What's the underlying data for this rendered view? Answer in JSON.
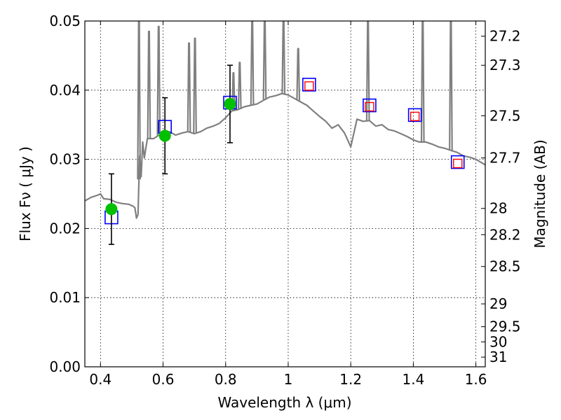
{
  "chart_data": {
    "type": "scatter",
    "xlabel": "Wavelength  λ (μm)",
    "ylabel": "Flux  Fν  ( μJy )",
    "ylabel_right": "Magnitude (AB)",
    "xlim": [
      0.35,
      1.63
    ],
    "ylim": [
      0.0,
      0.05
    ],
    "grid": true,
    "x_ticks": [
      0.4,
      0.6,
      0.8,
      1.0,
      1.2,
      1.4,
      1.6
    ],
    "x_tick_labels": [
      "0.4",
      "0.6",
      "0.8",
      "1",
      "1.2",
      "1.4",
      "1.6"
    ],
    "y_ticks": [
      0.0,
      0.01,
      0.02,
      0.03,
      0.04,
      0.05
    ],
    "y_tick_labels": [
      "0.00",
      "0.01",
      "0.02",
      "0.03",
      "0.04",
      "0.05"
    ],
    "right_axis_ticks": [
      {
        "flux": 0.0478,
        "label": "27.2"
      },
      {
        "flux": 0.0436,
        "label": "27.3"
      },
      {
        "flux": 0.0363,
        "label": "27.5"
      },
      {
        "flux": 0.0302,
        "label": "27.7"
      },
      {
        "flux": 0.0229,
        "label": "28"
      },
      {
        "flux": 0.0191,
        "label": "28.2"
      },
      {
        "flux": 0.0145,
        "label": "28.5"
      },
      {
        "flux": 0.0091,
        "label": "29"
      },
      {
        "flux": 0.0058,
        "label": "29.5"
      },
      {
        "flux": 0.0036,
        "label": "30"
      },
      {
        "flux": 0.0014,
        "label": "31"
      }
    ],
    "series": [
      {
        "kind": "line",
        "color": "#808080",
        "x": [
          0.35,
          0.37,
          0.39,
          0.4,
          0.41,
          0.43,
          0.45,
          0.47,
          0.49,
          0.505,
          0.51,
          0.515,
          0.52,
          0.525,
          0.53,
          0.535,
          0.54,
          0.55,
          0.56,
          0.57,
          0.58,
          0.59,
          0.6,
          0.62,
          0.64,
          0.66,
          0.68,
          0.7,
          0.72,
          0.74,
          0.76,
          0.78,
          0.8,
          0.82,
          0.84,
          0.86,
          0.88,
          0.9,
          0.92,
          0.94,
          0.96,
          0.98,
          1.0,
          1.02,
          1.04,
          1.06,
          1.08,
          1.1,
          1.12,
          1.14,
          1.16,
          1.18,
          1.2,
          1.22,
          1.24,
          1.26,
          1.28,
          1.3,
          1.32,
          1.34,
          1.36,
          1.38,
          1.4,
          1.42,
          1.44,
          1.46,
          1.48,
          1.5,
          1.52,
          1.54,
          1.56,
          1.58,
          1.6,
          1.63
        ],
        "y": [
          0.024,
          0.0245,
          0.0248,
          0.025,
          0.0243,
          0.0242,
          0.0238,
          0.0236,
          0.0235,
          0.0232,
          0.023,
          0.0215,
          0.022,
          0.0305,
          0.0275,
          0.0325,
          0.0302,
          0.033,
          0.033,
          0.033,
          0.0333,
          0.0336,
          0.0338,
          0.034,
          0.0335,
          0.0338,
          0.034,
          0.0337,
          0.034,
          0.0345,
          0.0348,
          0.0352,
          0.036,
          0.037,
          0.0372,
          0.0376,
          0.0378,
          0.038,
          0.0385,
          0.039,
          0.0392,
          0.0395,
          0.0393,
          0.0388,
          0.0383,
          0.0378,
          0.037,
          0.0362,
          0.0355,
          0.0345,
          0.035,
          0.0338,
          0.0318,
          0.0358,
          0.0355,
          0.0356,
          0.0348,
          0.035,
          0.0343,
          0.0341,
          0.0337,
          0.0333,
          0.0328,
          0.0325,
          0.0325,
          0.0322,
          0.0318,
          0.0316,
          0.0313,
          0.031,
          0.0305,
          0.0303,
          0.03,
          0.0292
        ]
      }
    ],
    "emission_lines": [
      {
        "x": 0.523,
        "peak": 0.0505
      },
      {
        "x": 0.555,
        "peak": 0.0485
      },
      {
        "x": 0.586,
        "peak": 0.0492
      },
      {
        "x": 0.683,
        "peak": 0.0468
      },
      {
        "x": 0.702,
        "peak": 0.0475
      },
      {
        "x": 0.825,
        "peak": 0.0425
      },
      {
        "x": 0.845,
        "peak": 0.044
      },
      {
        "x": 0.885,
        "peak": 0.0505
      },
      {
        "x": 0.925,
        "peak": 0.0505
      },
      {
        "x": 0.985,
        "peak": 0.0505
      },
      {
        "x": 1.032,
        "peak": 0.046
      },
      {
        "x": 1.255,
        "peak": 0.0505
      },
      {
        "x": 1.43,
        "peak": 0.0505
      },
      {
        "x": 1.52,
        "peak": 0.0505
      }
    ],
    "observed_points": [
      {
        "x": 0.435,
        "y": 0.0228,
        "yerr": 0.0051,
        "color": "#00c000"
      },
      {
        "x": 0.606,
        "y": 0.0334,
        "yerr": 0.0055,
        "color": "#00c000"
      },
      {
        "x": 0.814,
        "y": 0.038,
        "yerr": 0.0056,
        "color": "#00c000"
      }
    ],
    "model_blue_squares": [
      {
        "x": 0.435,
        "y": 0.0216
      },
      {
        "x": 0.606,
        "y": 0.0347
      },
      {
        "x": 0.814,
        "y": 0.0382
      },
      {
        "x": 1.067,
        "y": 0.0408
      },
      {
        "x": 1.26,
        "y": 0.0378
      },
      {
        "x": 1.405,
        "y": 0.0364
      },
      {
        "x": 1.542,
        "y": 0.0296
      }
    ],
    "model_red_squares": [
      {
        "x": 1.067,
        "y": 0.0406
      },
      {
        "x": 1.26,
        "y": 0.0376
      },
      {
        "x": 1.405,
        "y": 0.0362
      },
      {
        "x": 1.542,
        "y": 0.0294
      }
    ],
    "colors": {
      "spectrum": "#808080",
      "observed": "#00c000",
      "blue_marker": "#0000ff",
      "red_marker": "#ff0000"
    }
  }
}
